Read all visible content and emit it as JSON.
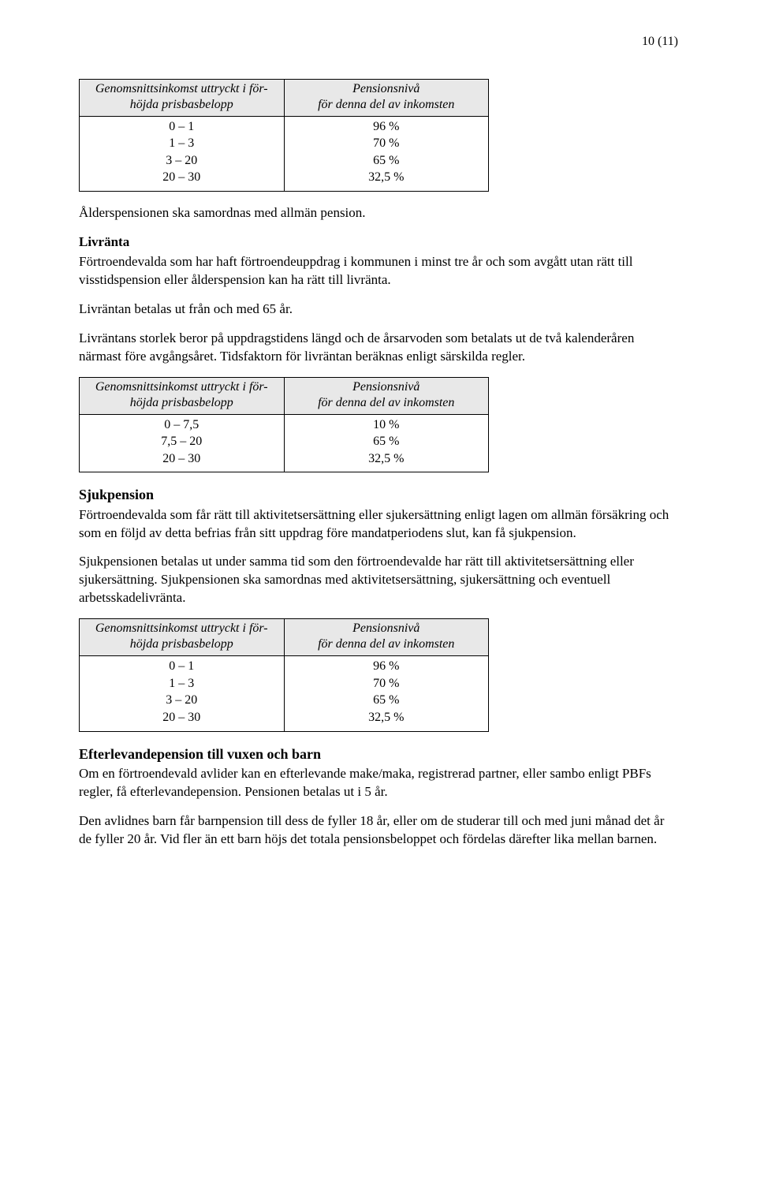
{
  "pageNumber": "10 (11)",
  "table1": {
    "header1": "Genomsnittsinkomst uttryckt i för-\nhöjda prisbasbelopp",
    "header2": "Pensionsnivå\nför denna del av inkomsten",
    "col1": [
      "0 – 1",
      "1 – 3",
      "3 – 20",
      "20 – 30"
    ],
    "col2": [
      "96 %",
      "70 %",
      "65 %",
      "32,5 %"
    ]
  },
  "para1": "Ålderspensionen ska samordnas med allmän pension.",
  "livranta_heading": "Livränta",
  "livranta_p1": "Förtroendevalda som har haft förtroendeuppdrag i kommunen i minst tre år och som avgått utan rätt till visstidspension eller ålderspension kan ha rätt till livränta.",
  "livranta_p2": "Livräntan betalas ut från och med 65 år.",
  "livranta_p3": "Livräntans storlek beror på uppdragstidens längd och de årsarvoden som betalats ut de två kalenderåren närmast före avgångsåret. Tidsfaktorn för livräntan beräknas enligt särskilda regler.",
  "table2": {
    "header1": "Genomsnittsinkomst uttryckt i för-\nhöjda prisbasbelopp",
    "header2": "Pensionsnivå\nför denna del av inkomsten",
    "col1": [
      "0 – 7,5",
      "7,5 – 20",
      "20 – 30"
    ],
    "col2": [
      "10 %",
      "65 %",
      "32,5 %"
    ]
  },
  "sjuk_heading": "Sjukpension",
  "sjuk_p1": "Förtroendevalda som får rätt till aktivitetsersättning eller sjukersättning enligt lagen om allmän försäkring och som en följd av detta befrias från sitt uppdrag före mandatperiodens slut, kan få sjukpension.",
  "sjuk_p2": "Sjukpensionen betalas ut under samma tid som den förtroendevalde har rätt till aktivitetsersättning eller sjukersättning. Sjukpensionen ska samordnas med aktivitetsersättning, sjukersättning och eventuell arbetsskadelivränta.",
  "table3": {
    "header1": "Genomsnittsinkomst uttryckt i för-\nhöjda prisbasbelopp",
    "header2": "Pensionsnivå\nför denna del av inkomsten",
    "col1": [
      "0 – 1",
      "1 – 3",
      "3 – 20",
      "20 – 30"
    ],
    "col2": [
      "96 %",
      "70 %",
      "65 %",
      "32,5 %"
    ]
  },
  "efter_heading": "Efterlevandepension till vuxen och barn",
  "efter_p1": "Om en förtroendevald avlider kan en efterlevande make/maka, registrerad partner, eller sambo enligt PBFs regler, få efterlevandepension. Pensionen betalas ut i 5 år.",
  "efter_p2": "Den avlidnes barn får barnpension till dess de fyller 18 år, eller om de studerar till och med juni månad det år de fyller 20 år. Vid fler än ett barn höjs det totala pensionsbeloppet och fördelas därefter lika mellan barnen."
}
